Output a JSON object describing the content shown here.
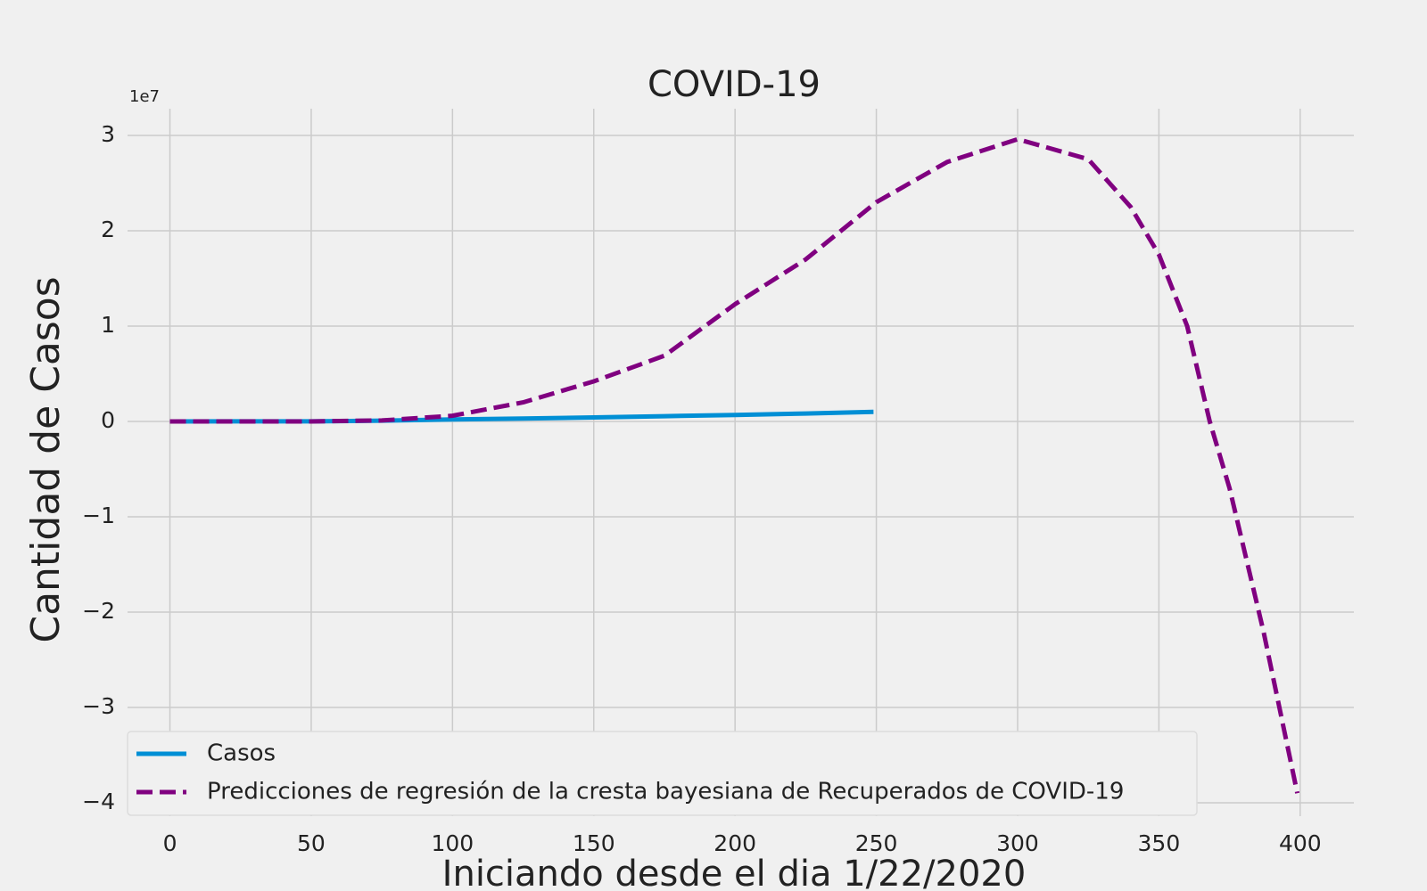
{
  "chart_data": {
    "type": "line",
    "title": "COVID-19",
    "xlabel": "Iniciando desde el dia 1/22/2020",
    "ylabel": "Cantidad de Casos",
    "y_offset_label": "1e7",
    "xlim": [
      -15,
      419
    ],
    "ylim": [
      -4.14,
      3.28
    ],
    "xticks": [
      0,
      50,
      100,
      150,
      200,
      250,
      300,
      350,
      400
    ],
    "yticks": [
      {
        "value": -4,
        "label": "−4"
      },
      {
        "value": -3,
        "label": "−3"
      },
      {
        "value": -2,
        "label": "−2"
      },
      {
        "value": -1,
        "label": "−1"
      },
      0,
      1,
      2,
      3
    ],
    "grid": true,
    "legend": "lower left",
    "series": [
      {
        "name": "Casos",
        "color": "#008fd5",
        "linestyle": "solid",
        "x": [
          0,
          25,
          50,
          75,
          100,
          125,
          150,
          175,
          200,
          225,
          249
        ],
        "values": [
          0,
          0.0005,
          0.001,
          0.008,
          0.02,
          0.03,
          0.042,
          0.055,
          0.068,
          0.083,
          0.1
        ]
      },
      {
        "name": "Predicciones de regresión de la cresta bayesiana de Recuperados de COVID-19",
        "color": "#800080",
        "linestyle": "dashed",
        "x": [
          0,
          25,
          50,
          75,
          100,
          125,
          150,
          175,
          200,
          225,
          250,
          275,
          300,
          325,
          340,
          350,
          360,
          368,
          375,
          387,
          399
        ],
        "values": [
          0,
          0,
          0,
          0.01,
          0.06,
          0.2,
          0.42,
          0.69,
          1.23,
          1.7,
          2.3,
          2.72,
          2.96,
          2.75,
          2.25,
          1.75,
          1.0,
          0,
          -0.7,
          -2.2,
          -3.9
        ]
      }
    ]
  }
}
